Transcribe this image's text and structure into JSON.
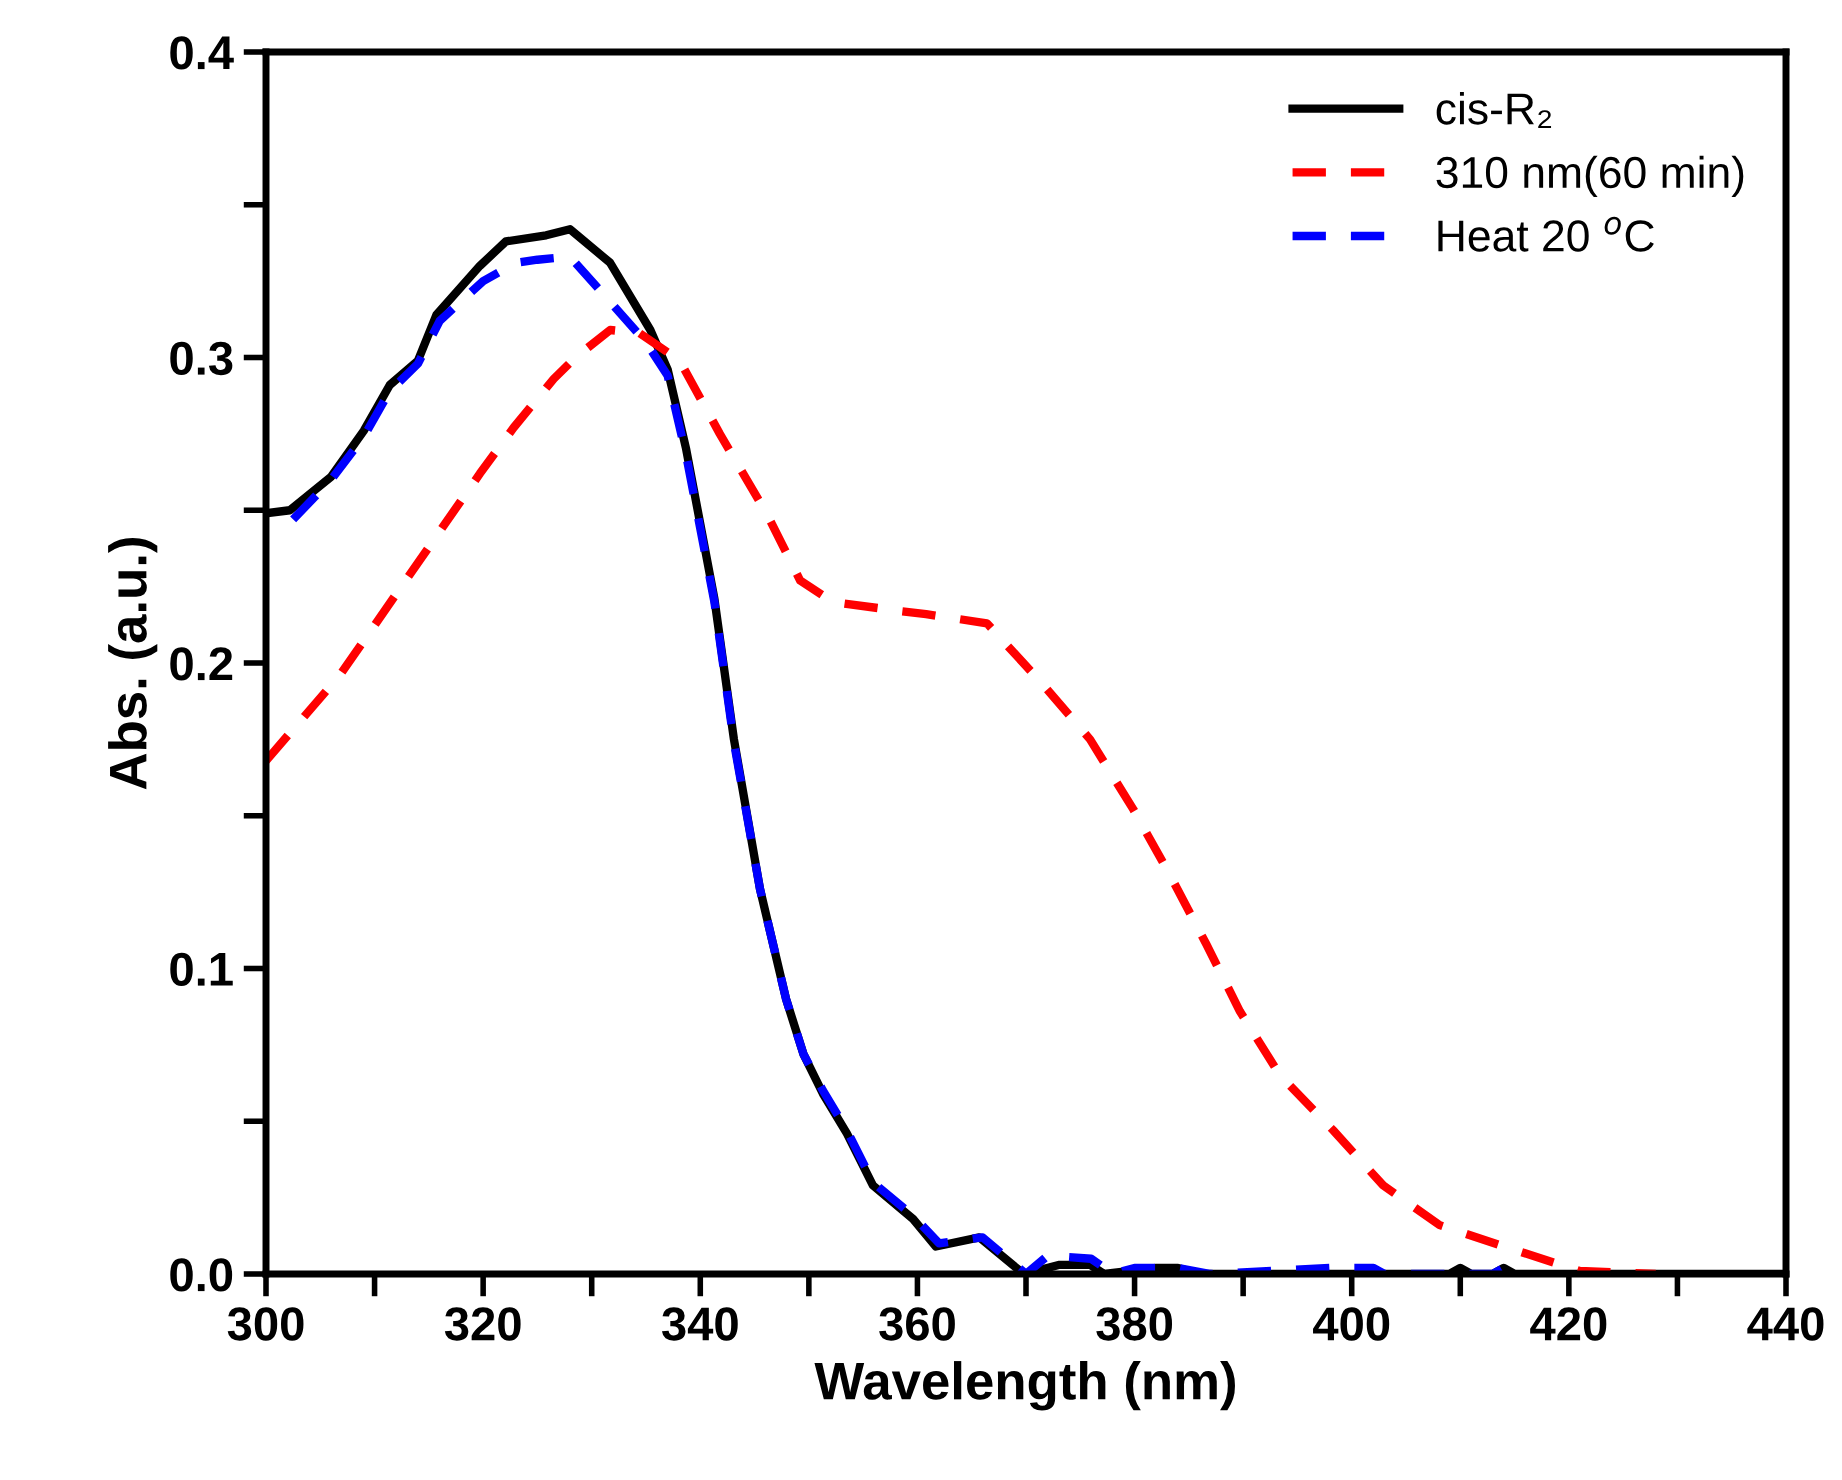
{
  "chart_data": {
    "type": "line",
    "xlabel": "Wavelength (nm)",
    "ylabel": "Abs. (a.u.)",
    "xlim": [
      300,
      440
    ],
    "ylim": [
      0,
      0.4
    ],
    "xticks": [
      300,
      {
        "value": 310,
        "label": null
      },
      320,
      {
        "value": 330,
        "label": null
      },
      340,
      {
        "value": 350,
        "label": null
      },
      360,
      {
        "value": 370,
        "label": null
      },
      380,
      {
        "value": 390,
        "label": null
      },
      400,
      {
        "value": 410,
        "label": null
      },
      420,
      {
        "value": 430,
        "label": null
      },
      440
    ],
    "yticks": [
      {
        "value": 0,
        "label": "0.0"
      },
      {
        "value": 0.05,
        "label": null
      },
      0.1,
      {
        "value": 0.15,
        "label": null
      },
      0.2,
      {
        "value": 0.25,
        "label": null
      },
      0.3,
      {
        "value": 0.35,
        "label": null
      },
      0.4
    ],
    "grid": false,
    "legend": "top right",
    "marker": "none",
    "series": [
      {
        "name": "cis-R₂",
        "color": "#000000",
        "line_style": "solid",
        "x": [
          300,
          302.2,
          306,
          309,
          311.4,
          314,
          315.7,
          319.7,
          322.1,
          325.8,
          328,
          331.7,
          335.4,
          337,
          338.7,
          341.3,
          343.1,
          345.5,
          347.9,
          349.5,
          351.3,
          353.5,
          355.9,
          359.6,
          361.7,
          365.7,
          369.8,
          373.1,
          375.9,
          377.2,
          382,
          384,
          386,
          409,
          410,
          411,
          413,
          414,
          415,
          440
        ],
        "values": [
          0.249,
          0.25,
          0.261,
          0.276,
          0.291,
          0.299,
          0.314,
          0.33,
          0.338,
          0.34,
          0.342,
          0.331,
          0.309,
          0.296,
          0.27,
          0.221,
          0.175,
          0.126,
          0.09,
          0.072,
          0.059,
          0.046,
          0.029,
          0.018,
          0.009,
          0.012,
          0,
          0.003,
          0.003,
          0,
          0.002,
          0.002,
          0,
          0,
          0.002,
          0,
          0,
          0.002,
          0,
          0
        ]
      },
      {
        "name": "310 nm(60 min)",
        "color": "#ff0000",
        "line_style": "dashed",
        "x": [
          300,
          306.8,
          315.4,
          319.7,
          322.8,
          326.5,
          328.5,
          331.7,
          334.4,
          338.1,
          341.8,
          346.1,
          349.2,
          352.2,
          358.4,
          360.8,
          366.4,
          371.3,
          375.9,
          379.9,
          383.2,
          386.6,
          389.7,
          393.4,
          398.3,
          402.9,
          408.1,
          414.9,
          421,
          428
        ],
        "values": [
          0.168,
          0.196,
          0.24,
          0.262,
          0.277,
          0.293,
          0.3,
          0.309,
          0.308,
          0.299,
          0.275,
          0.249,
          0.227,
          0.22,
          0.217,
          0.216,
          0.213,
          0.194,
          0.175,
          0.152,
          0.131,
          0.108,
          0.086,
          0.065,
          0.047,
          0.029,
          0.016,
          0.008,
          0.001,
          0
        ]
      },
      {
        "name": "Heat 20 $^{o}$C",
        "color": "#0000ff",
        "line_style": "dashed",
        "x": [
          302.5,
          306,
          309,
          311.4,
          314,
          316,
          320,
          323,
          325,
          328,
          331,
          335,
          337,
          338.7,
          341.3,
          343.1,
          345.5,
          347.9,
          349.5,
          351.3,
          353.5,
          355.9,
          359.6,
          362,
          366,
          370,
          372,
          376,
          378,
          380,
          384,
          387,
          398,
          402,
          403,
          413,
          414,
          415
        ],
        "values": [
          0.247,
          0.26,
          0.274,
          0.289,
          0.298,
          0.312,
          0.325,
          0.331,
          0.332,
          0.333,
          0.321,
          0.305,
          0.294,
          0.268,
          0.22,
          0.174,
          0.126,
          0.09,
          0.072,
          0.06,
          0.047,
          0.03,
          0.019,
          0.01,
          0.012,
          0,
          0.006,
          0.005,
          0,
          0.002,
          0.002,
          0,
          0.002,
          0.002,
          0,
          0,
          0.002,
          0
        ]
      }
    ]
  }
}
